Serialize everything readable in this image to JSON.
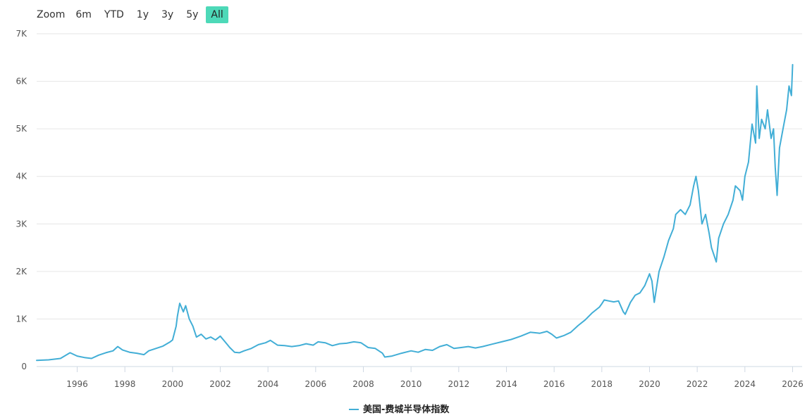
{
  "zoom": {
    "label": "Zoom",
    "buttons": [
      {
        "label": "6m",
        "active": false
      },
      {
        "label": "YTD",
        "active": false
      },
      {
        "label": "1y",
        "active": false
      },
      {
        "label": "3y",
        "active": false
      },
      {
        "label": "5y",
        "active": false
      },
      {
        "label": "All",
        "active": true
      }
    ]
  },
  "chart_data": {
    "type": "line",
    "title": "",
    "xlabel": "",
    "ylabel": "",
    "line_color": "#42aed6",
    "grid": true,
    "legend_position": "bottom-center",
    "xlim": [
      1994.3,
      2026.4
    ],
    "ylim": [
      0,
      7000
    ],
    "x_ticks": [
      {
        "value": 1996,
        "label": "1996"
      },
      {
        "value": 1998,
        "label": "1998"
      },
      {
        "value": 2000,
        "label": "2000"
      },
      {
        "value": 2002,
        "label": "2002"
      },
      {
        "value": 2004,
        "label": "2004"
      },
      {
        "value": 2006,
        "label": "2006"
      },
      {
        "value": 2008,
        "label": "2008"
      },
      {
        "value": 2010,
        "label": "2010"
      },
      {
        "value": 2012,
        "label": "2012"
      },
      {
        "value": 2014,
        "label": "2014"
      },
      {
        "value": 2016,
        "label": "2016"
      },
      {
        "value": 2018,
        "label": "2018"
      },
      {
        "value": 2020,
        "label": "2020"
      },
      {
        "value": 2022,
        "label": "2022"
      },
      {
        "value": 2024,
        "label": "2024"
      },
      {
        "value": 2026,
        "label": "2026"
      }
    ],
    "y_ticks": [
      {
        "value": 0,
        "label": "0"
      },
      {
        "value": 1000,
        "label": "1K"
      },
      {
        "value": 2000,
        "label": "2K"
      },
      {
        "value": 3000,
        "label": "3K"
      },
      {
        "value": 4000,
        "label": "4K"
      },
      {
        "value": 5000,
        "label": "5K"
      },
      {
        "value": 6000,
        "label": "6K"
      },
      {
        "value": 7000,
        "label": "7K"
      }
    ],
    "series": [
      {
        "name": "美国-费城半导体指数",
        "x": [
          1994.3,
          1994.8,
          1995.3,
          1995.7,
          1996.0,
          1996.3,
          1996.6,
          1996.9,
          1997.2,
          1997.5,
          1997.7,
          1997.9,
          1998.2,
          1998.5,
          1998.8,
          1999.0,
          1999.3,
          1999.6,
          1999.9,
          2000.0,
          2000.15,
          2000.2,
          2000.3,
          2000.45,
          2000.55,
          2000.7,
          2000.85,
          2001.0,
          2001.2,
          2001.4,
          2001.6,
          2001.8,
          2002.0,
          2002.2,
          2002.4,
          2002.6,
          2002.8,
          2003.0,
          2003.3,
          2003.6,
          2003.9,
          2004.1,
          2004.4,
          2004.7,
          2005.0,
          2005.3,
          2005.6,
          2005.9,
          2006.1,
          2006.4,
          2006.7,
          2007.0,
          2007.3,
          2007.6,
          2007.9,
          2008.2,
          2008.5,
          2008.8,
          2008.9,
          2009.2,
          2009.6,
          2010.0,
          2010.3,
          2010.6,
          2010.9,
          2011.2,
          2011.5,
          2011.8,
          2012.1,
          2012.4,
          2012.7,
          2013.0,
          2013.4,
          2013.8,
          2014.2,
          2014.6,
          2015.0,
          2015.4,
          2015.7,
          2015.9,
          2016.1,
          2016.4,
          2016.7,
          2017.0,
          2017.3,
          2017.6,
          2017.9,
          2018.0,
          2018.1,
          2018.3,
          2018.5,
          2018.7,
          2018.9,
          2018.98,
          2019.2,
          2019.4,
          2019.6,
          2019.8,
          2020.0,
          2020.1,
          2020.2,
          2020.4,
          2020.6,
          2020.8,
          2021.0,
          2021.1,
          2021.3,
          2021.5,
          2021.7,
          2021.85,
          2021.95,
          2022.05,
          2022.2,
          2022.35,
          2022.5,
          2022.6,
          2022.8,
          2022.9,
          2023.1,
          2023.3,
          2023.5,
          2023.6,
          2023.8,
          2023.9,
          2024.0,
          2024.15,
          2024.3,
          2024.45,
          2024.5,
          2024.6,
          2024.7,
          2024.85,
          2024.95,
          2025.1,
          2025.2,
          2025.27,
          2025.35,
          2025.45,
          2025.6,
          2025.75,
          2025.85,
          2025.95,
          2026.0
        ],
        "y": [
          130,
          140,
          170,
          290,
          220,
          190,
          170,
          240,
          290,
          330,
          420,
          350,
          300,
          280,
          250,
          330,
          380,
          430,
          520,
          560,
          850,
          1050,
          1330,
          1150,
          1280,
          1000,
          850,
          620,
          680,
          580,
          620,
          560,
          640,
          520,
          400,
          300,
          290,
          330,
          380,
          460,
          500,
          550,
          450,
          440,
          420,
          440,
          480,
          450,
          520,
          500,
          440,
          480,
          490,
          520,
          500,
          400,
          380,
          280,
          200,
          220,
          280,
          330,
          300,
          360,
          340,
          420,
          460,
          380,
          400,
          420,
          390,
          420,
          470,
          520,
          570,
          640,
          720,
          700,
          740,
          680,
          600,
          650,
          720,
          860,
          980,
          1130,
          1250,
          1320,
          1400,
          1380,
          1360,
          1380,
          1150,
          1100,
          1350,
          1500,
          1550,
          1700,
          1950,
          1800,
          1350,
          2000,
          2300,
          2650,
          2900,
          3200,
          3300,
          3200,
          3400,
          3800,
          4000,
          3700,
          3000,
          3200,
          2800,
          2500,
          2200,
          2700,
          3000,
          3200,
          3500,
          3800,
          3700,
          3500,
          4000,
          4300,
          5100,
          4700,
          5900,
          4800,
          5200,
          5000,
          5400,
          4800,
          5000,
          4200,
          3600,
          4600,
          5000,
          5400,
          5900,
          5700,
          6350
        ]
      }
    ]
  }
}
